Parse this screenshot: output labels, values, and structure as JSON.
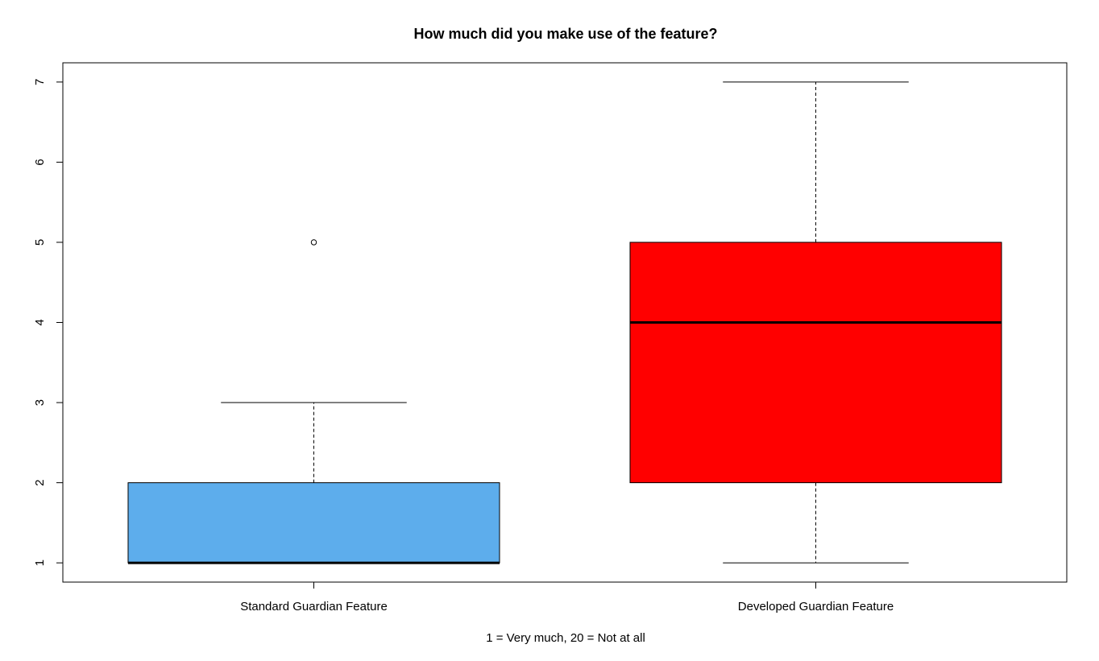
{
  "chart_data": {
    "type": "box",
    "title": "How much did you make use of the feature?",
    "xlabel": "1 = Very much, 20 = Not at all",
    "ylabel": "",
    "ylim": [
      0.76,
      7.24
    ],
    "yticks": [
      1,
      2,
      3,
      4,
      5,
      6,
      7
    ],
    "categories": [
      "Standard Guardian Feature",
      "Developed Guardian Feature"
    ],
    "boxes": [
      {
        "category": "Standard Guardian Feature",
        "whisker_low": 1,
        "q1": 1,
        "median": 1,
        "q3": 2,
        "whisker_high": 3,
        "outliers": [
          5
        ],
        "color": "#5DADEC"
      },
      {
        "category": "Developed Guardian Feature",
        "whisker_low": 1,
        "q1": 2,
        "median": 4,
        "q3": 5,
        "whisker_high": 7,
        "outliers": [],
        "color": "#FF0000"
      }
    ]
  }
}
